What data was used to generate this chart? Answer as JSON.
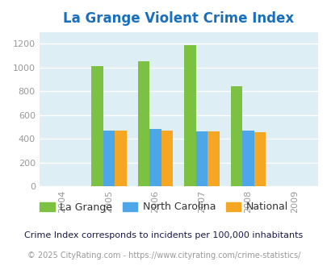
{
  "title": "La Grange Violent Crime Index",
  "title_color": "#1a6fbd",
  "years": [
    2005,
    2006,
    2007,
    2008
  ],
  "x_ticks": [
    2004,
    2005,
    2006,
    2007,
    2008,
    2009
  ],
  "la_grange": [
    1010,
    1055,
    1190,
    845
  ],
  "north_carolina": [
    472,
    482,
    462,
    472
  ],
  "national": [
    472,
    472,
    460,
    452
  ],
  "colors": {
    "la_grange": "#7dc142",
    "north_carolina": "#4da6e8",
    "national": "#f5a623"
  },
  "bar_width": 0.25,
  "ylim": [
    0,
    1300
  ],
  "yticks": [
    0,
    200,
    400,
    600,
    800,
    1000,
    1200
  ],
  "plot_area_color": "#ddeef4",
  "fig_bg_color": "#ffffff",
  "legend_labels": [
    "La Grange",
    "North Carolina",
    "National"
  ],
  "footnote1": "Crime Index corresponds to incidents per 100,000 inhabitants",
  "footnote2": "© 2025 CityRating.com - https://www.cityrating.com/crime-statistics/",
  "footnote1_color": "#1a1a4e",
  "footnote2_color": "#999999",
  "tick_label_color": "#999999",
  "grid_color": "#ffffff",
  "title_fontsize": 12,
  "tick_fontsize": 8,
  "legend_fontsize": 9,
  "footnote1_fontsize": 8,
  "footnote2_fontsize": 7
}
